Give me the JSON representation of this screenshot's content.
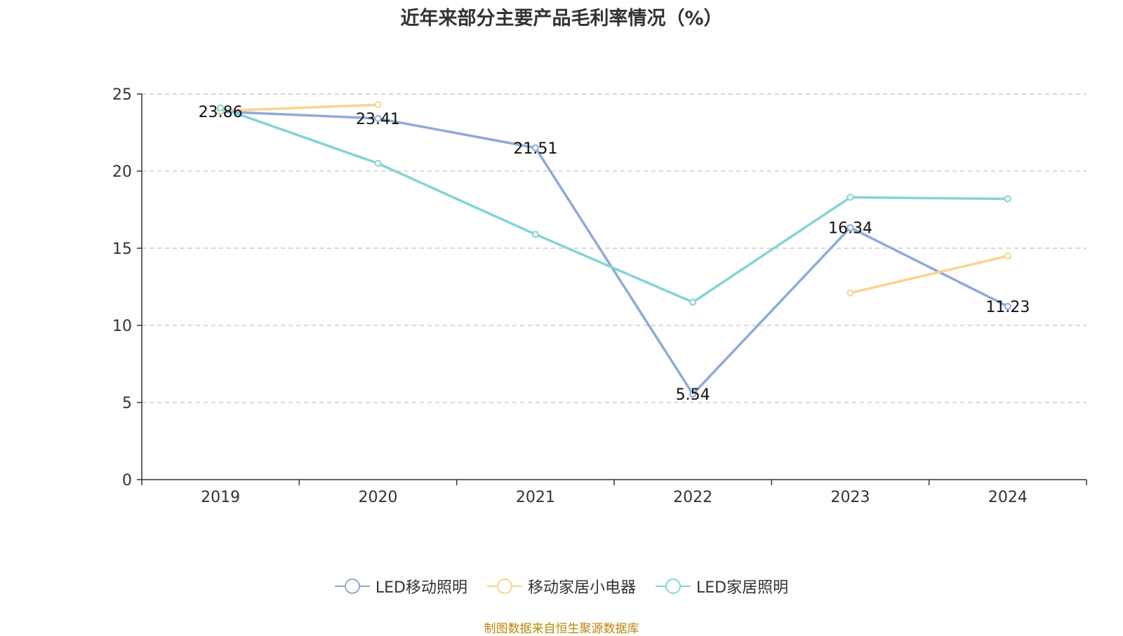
{
  "chart_data": {
    "type": "line",
    "title": "近年来部分主要产品毛利率情况（%）",
    "categories": [
      "2019",
      "2020",
      "2021",
      "2022",
      "2023",
      "2024"
    ],
    "ylim": [
      0,
      25
    ],
    "yticks": [
      0,
      5,
      10,
      15,
      20,
      25
    ],
    "grid": true,
    "legend_position": "bottom",
    "series": [
      {
        "name": "LED移动照明",
        "color": "#8eaadb",
        "values": [
          23.86,
          23.41,
          21.51,
          5.54,
          16.34,
          11.23
        ],
        "labels": [
          "23.86",
          "23.41",
          "21.51",
          "5.54",
          "16.34",
          "11.23"
        ]
      },
      {
        "name": "移动家居小电器",
        "color": "#f9d38e",
        "values": [
          23.9,
          24.3,
          null,
          null,
          12.1,
          14.5
        ],
        "labels": null
      },
      {
        "name": "LED家居照明",
        "color": "#82d4d6",
        "values": [
          24.1,
          20.5,
          15.9,
          11.5,
          18.3,
          18.2
        ],
        "labels": null
      }
    ]
  },
  "source_note": "制图数据来自恒生聚源数据库"
}
